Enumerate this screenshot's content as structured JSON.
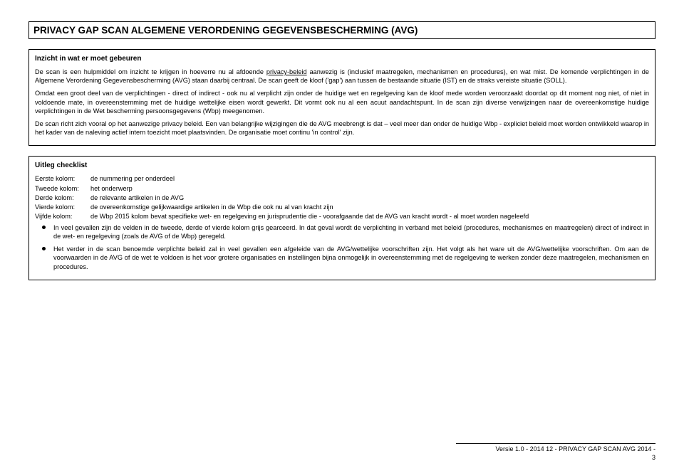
{
  "title": "PRIVACY GAP SCAN ALGEMENE VERORDENING GEGEVENSBESCHERMING (AVG)",
  "box1": {
    "heading": "Inzicht in wat er moet gebeuren",
    "p1a": "De scan is een hulpmiddel om inzicht te krijgen in hoeverre nu al afdoende ",
    "p1_link": "privacy-beleid",
    "p1b": " aanwezig is (inclusief maatregelen, mechanismen en procedures), en wat mist. De komende verplichtingen in de Algemene Verordening Gegevensbescherming (AVG) staan daarbij centraal. De scan geeft de kloof ('gap') aan tussen de bestaande situatie (IST) en de straks vereiste situatie (SOLL).",
    "p2": "Omdat een groot deel van de verplichtingen - direct of indirect - ook nu al verplicht zijn onder de huidige wet en regelgeving kan de kloof mede worden veroorzaakt doordat op dit moment nog niet, of niet in voldoende mate, in overeenstemming met de huidige wettelijke eisen wordt gewerkt. Dit vormt ook nu al een acuut aandachtspunt. In de scan zijn diverse verwijzingen naar de overeenkomstige huidige verplichtingen in de Wet bescherming persoonsgegevens (Wbp) meegenomen.",
    "p3": "De scan richt zich vooral op het aanwezige privacy beleid. Een van belangrijke wijzigingen die de AVG meebrengt is dat – veel meer dan onder de huidige Wbp - expliciet beleid moet worden ontwikkeld waarop in het kader van de naleving actief intern toezicht moet plaatsvinden. De organisatie moet continu 'in control' zijn."
  },
  "box2": {
    "heading": "Uitleg checklist",
    "rows": [
      {
        "label": "Eerste kolom:",
        "val": "de nummering per onderdeel"
      },
      {
        "label": "Tweede kolom:",
        "val": "het onderwerp"
      },
      {
        "label": "Derde kolom:",
        "val": "de relevante artikelen in de AVG"
      },
      {
        "label": "Vierde kolom:",
        "val": "de overeenkomstige gelijkwaardige artikelen in de Wbp die ook nu al van kracht zijn"
      },
      {
        "label": "Vijfde kolom:",
        "val": "de Wbp 2015 kolom bevat specifieke wet- en regelgeving en jurisprudentie die - voorafgaande dat de AVG van kracht wordt - al moet worden nageleefd"
      }
    ],
    "bullets": [
      "In veel gevallen zijn de velden in de tweede, derde of vierde kolom grijs gearceerd. In dat geval wordt de verplichting in verband met beleid (procedures, mechanismes en maatregelen) direct of indirect in de wet- en regelgeving (zoals de AVG of de Wbp) geregeld.",
      "Het verder in de scan benoemde verplichte beleid zal in veel gevallen een afgeleide van de AVG/wettelijke voorschriften zijn. Het volgt als het ware uit de AVG/wettelijke voorschriften. Om aan de voorwaarden in de AVG of de wet te voldoen is het voor grotere organisaties en instellingen bijna onmogelijk in overeenstemming met de regelgeving te werken zonder deze maatregelen, mechanismen en procedures."
    ]
  },
  "footer": {
    "line": "Versie 1.0 - 2014 12 - PRIVACY GAP SCAN AVG 2014 -",
    "page": "3"
  }
}
